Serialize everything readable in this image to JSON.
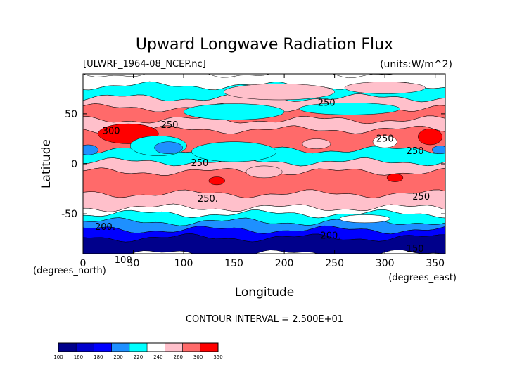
{
  "chart_data": {
    "type": "heatmap",
    "title": "Upward Longwave Radiation Flux",
    "dataset_label": "[ULWRF_1964-08_NCEP.nc]",
    "units_label": "(units:W/m^2)",
    "xlabel": "Longitude",
    "ylabel": "Latitude",
    "x_unit_label": "(degrees_east)",
    "y_unit_label": "(degrees_north)",
    "xlim": [
      0,
      360
    ],
    "ylim": [
      -90,
      90
    ],
    "x_ticks": [
      0,
      50,
      100,
      150,
      200,
      250,
      300,
      350
    ],
    "x_tick_labels": [
      "0",
      "50",
      "100",
      "150",
      "200",
      "250",
      "300",
      "350"
    ],
    "y_ticks": [
      -50,
      0,
      50
    ],
    "y_tick_labels": [
      "-50",
      "0",
      "50"
    ],
    "contour_interval_text": "CONTOUR INTERVAL = 2.500E+01",
    "contour_labels": [
      {
        "text": "300",
        "lon": 28,
        "lat": 30
      },
      {
        "text": "250",
        "lon": 86,
        "lat": 36
      },
      {
        "text": "250",
        "lon": 242,
        "lat": 58
      },
      {
        "text": "250",
        "lon": 300,
        "lat": 22
      },
      {
        "text": "250",
        "lon": 330,
        "lat": 10
      },
      {
        "text": "250",
        "lon": 116,
        "lat": -2
      },
      {
        "text": "250.",
        "lon": 124,
        "lat": -38
      },
      {
        "text": "250",
        "lon": 336,
        "lat": -36
      },
      {
        "text": "200.",
        "lon": 22,
        "lat": -66
      },
      {
        "text": "200.",
        "lon": 246,
        "lat": -75
      },
      {
        "text": "150",
        "lon": 330,
        "lat": -88
      },
      {
        "text": "100",
        "lon": 40,
        "lat": -99
      }
    ],
    "colorbar": {
      "levels": [
        "100",
        "160",
        "180",
        "200",
        "220",
        "240",
        "260",
        "300",
        "350"
      ],
      "colors": [
        "#00008b",
        "#0000cd",
        "#0000ff",
        "#1e90ff",
        "#00ffff",
        "#ffffff",
        "#ffc0cb",
        "#ff6a6a",
        "#ff0000"
      ]
    },
    "bands": [
      {
        "from": 90,
        "to": 78,
        "color": "#ffffff",
        "level": "220-240"
      },
      {
        "from": 78,
        "to": 66,
        "color": "#00ffff",
        "level": "200-220"
      },
      {
        "from": 66,
        "to": 56,
        "color": "#ffc0cb",
        "level": "240-260"
      },
      {
        "from": 56,
        "to": 44,
        "color": "#ff6a6a",
        "level": "260-300"
      },
      {
        "from": 44,
        "to": 34,
        "color": "#ffc0cb",
        "level": "240-260"
      },
      {
        "from": 34,
        "to": 14,
        "color": "#ff6a6a",
        "level": "260-300"
      },
      {
        "from": 14,
        "to": 2,
        "color": "#00ffff",
        "level": "200-220"
      },
      {
        "from": 2,
        "to": -8,
        "color": "#ffc0cb",
        "level": "240-260"
      },
      {
        "from": -8,
        "to": -30,
        "color": "#ff6a6a",
        "level": "260-300"
      },
      {
        "from": -30,
        "to": -44,
        "color": "#ffc0cb",
        "level": "240-260"
      },
      {
        "from": -44,
        "to": -50,
        "color": "#ffffff",
        "level": "220-240"
      },
      {
        "from": -50,
        "to": -58,
        "color": "#00ffff",
        "level": "200-220"
      },
      {
        "from": -58,
        "to": -66,
        "color": "#1e90ff",
        "level": "180-200"
      },
      {
        "from": -66,
        "to": -74,
        "color": "#0000ff",
        "level": "160-180"
      },
      {
        "from": -74,
        "to": -90,
        "color": "#00008b",
        "level": "100-160"
      }
    ],
    "patches": [
      {
        "lon": 45,
        "lat": 30,
        "rlon": 30,
        "rlat": 10,
        "color": "#ff0000"
      },
      {
        "lon": 345,
        "lat": 27,
        "rlon": 12,
        "rlat": 8,
        "color": "#ff0000"
      },
      {
        "lon": 195,
        "lat": 72,
        "rlon": 55,
        "rlat": 8,
        "color": "#ffc0cb"
      },
      {
        "lon": 300,
        "lat": 76,
        "rlon": 40,
        "rlat": 6,
        "color": "#ffc0cb"
      },
      {
        "lon": 150,
        "lat": 52,
        "rlon": 50,
        "rlat": 8,
        "color": "#00ffff"
      },
      {
        "lon": 265,
        "lat": 55,
        "rlon": 50,
        "rlat": 6,
        "color": "#00ffff"
      },
      {
        "lon": 75,
        "lat": 18,
        "rlon": 28,
        "rlat": 10,
        "color": "#00ffff"
      },
      {
        "lon": 85,
        "lat": 16,
        "rlon": 14,
        "rlat": 6,
        "color": "#1e90ff"
      },
      {
        "lon": 150,
        "lat": 12,
        "rlon": 42,
        "rlat": 10,
        "color": "#00ffff"
      },
      {
        "lon": 300,
        "lat": 22,
        "rlon": 12,
        "rlat": 6,
        "color": "#ffffff"
      },
      {
        "lon": 232,
        "lat": 20,
        "rlon": 14,
        "rlat": 5,
        "color": "#ffc0cb"
      },
      {
        "lon": 5,
        "lat": 14,
        "rlon": 10,
        "rlat": 5,
        "color": "#1e90ff"
      },
      {
        "lon": 355,
        "lat": 14,
        "rlon": 8,
        "rlat": 4,
        "color": "#1e90ff"
      },
      {
        "lon": 133,
        "lat": -17,
        "rlon": 8,
        "rlat": 4,
        "color": "#ff0000"
      },
      {
        "lon": 310,
        "lat": -14,
        "rlon": 8,
        "rlat": 4,
        "color": "#ff0000"
      },
      {
        "lon": 180,
        "lat": -8,
        "rlon": 18,
        "rlat": 6,
        "color": "#ffc0cb"
      },
      {
        "lon": 280,
        "lat": -55,
        "rlon": 25,
        "rlat": 4,
        "color": "#ffffff"
      }
    ]
  }
}
